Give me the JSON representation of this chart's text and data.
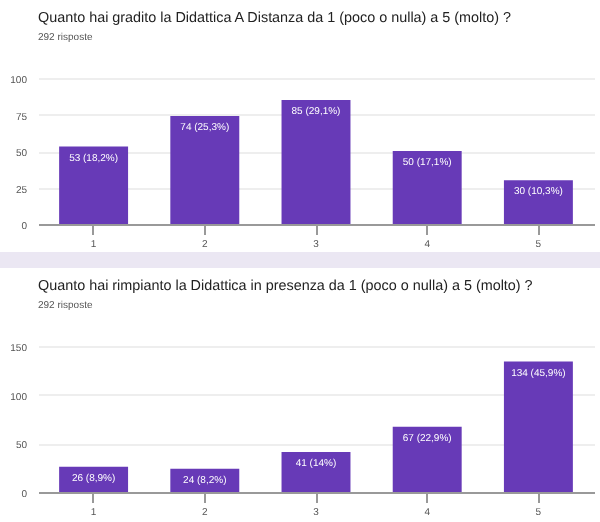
{
  "chart_data": [
    {
      "type": "bar",
      "title": "Quanto hai gradito la Didattica A Distanza da 1 (poco o nulla) a 5 (molto) ?",
      "subtitle": "292 risposte",
      "categories": [
        "1",
        "2",
        "3",
        "4",
        "5"
      ],
      "values": [
        53,
        74,
        85,
        50,
        30
      ],
      "color": "#673ab7",
      "value_labels": [
        "53 (18,2%)",
        "74 (25,3%)",
        "85 (29,1%)",
        "50 (17,1%)",
        "30 (10,3%)"
      ],
      "ylim": [
        0,
        100
      ],
      "yticks": [
        0,
        25,
        50,
        75,
        100
      ],
      "grid": "y"
    },
    {
      "type": "bar",
      "title": "Quanto hai rimpianto la Didattica in presenza da 1 (poco o nulla) a 5 (molto) ?",
      "subtitle": "292 risposte",
      "categories": [
        "1",
        "2",
        "3",
        "4",
        "5"
      ],
      "values": [
        26,
        24,
        41,
        67,
        134
      ],
      "color": "#673ab7",
      "value_labels": [
        "26 (8,9%)",
        "24 (8,2%)",
        "41 (14%)",
        "67 (22,9%)",
        "134 (45,9%)"
      ],
      "ylim": [
        0,
        150
      ],
      "yticks": [
        0,
        50,
        100,
        150
      ],
      "grid": "y"
    }
  ]
}
